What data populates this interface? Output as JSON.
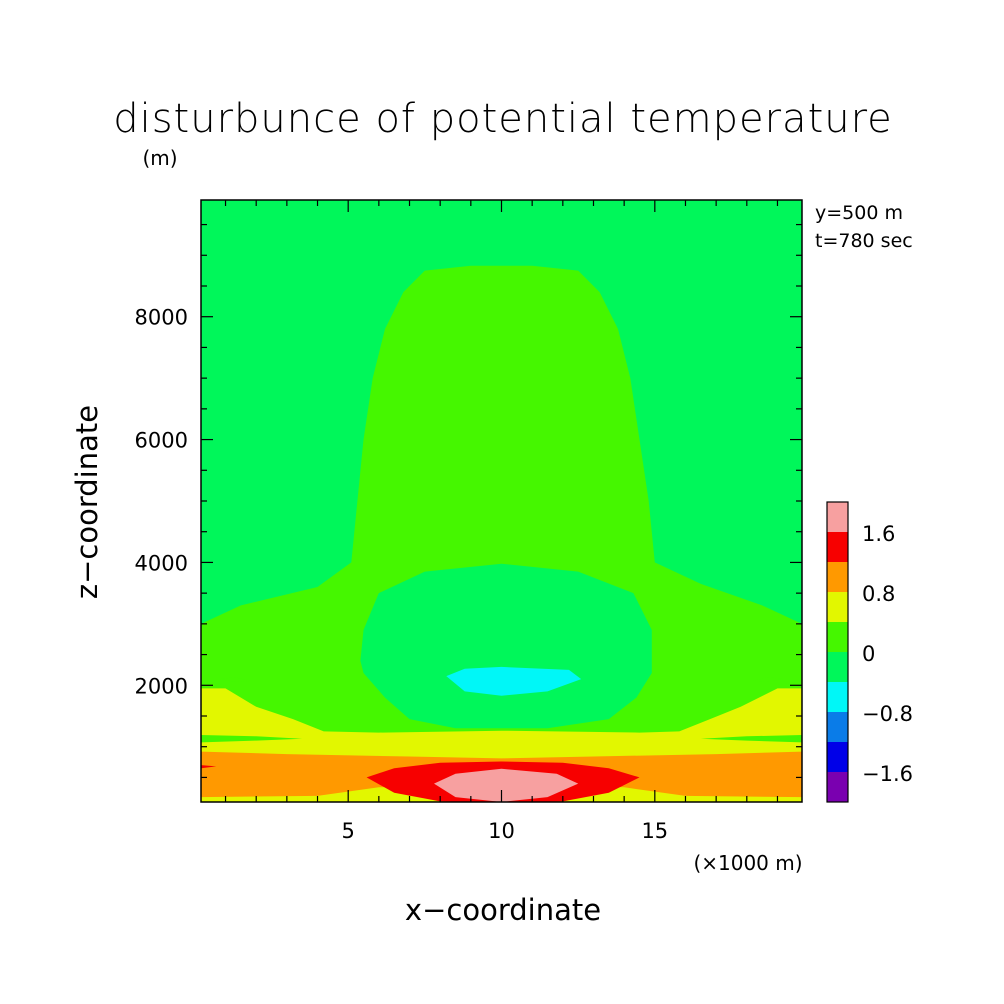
{
  "chart_data": {
    "type": "heatmap",
    "title": "disturbunce of potential temperature",
    "y_unit": "(m)",
    "xlabel": "x−coordinate",
    "ylabel": "z−coordinate",
    "x_unit": "(×1000 m)",
    "annotations": [
      "y=500 m",
      "t=780 sec"
    ],
    "xlim": [
      0.2,
      19.8
    ],
    "ylim": [
      100,
      9900
    ],
    "x_ticks": [
      {
        "value": 5,
        "label": "5"
      },
      {
        "value": 10,
        "label": "10"
      },
      {
        "value": 15,
        "label": "15"
      }
    ],
    "y_ticks": [
      {
        "value": 2000,
        "label": "2000"
      },
      {
        "value": 4000,
        "label": "4000"
      },
      {
        "value": 6000,
        "label": "6000"
      },
      {
        "value": 8000,
        "label": "8000"
      }
    ],
    "colorbar": {
      "levels": [
        {
          "range": [
            -2.0,
            -1.6
          ],
          "color": "#7a00b0",
          "label": "−1.6"
        },
        {
          "range": [
            -1.6,
            -1.2
          ],
          "color": "#0000e8",
          "label": ""
        },
        {
          "range": [
            -1.2,
            -0.8
          ],
          "color": "#0a7ce8",
          "label": "−0.8"
        },
        {
          "range": [
            -0.8,
            -0.4
          ],
          "color": "#00f7f7",
          "label": ""
        },
        {
          "range": [
            -0.4,
            0.0
          ],
          "color": "#00f75a",
          "label": "0"
        },
        {
          "range": [
            0.0,
            0.4
          ],
          "color": "#45f700",
          "label": ""
        },
        {
          "range": [
            0.4,
            0.8
          ],
          "color": "#e2f700",
          "label": "0.8"
        },
        {
          "range": [
            0.8,
            1.2
          ],
          "color": "#ff9900",
          "label": ""
        },
        {
          "range": [
            1.2,
            1.6
          ],
          "color": "#f70000",
          "label": "1.6"
        },
        {
          "range": [
            1.6,
            2.0
          ],
          "color": "#f7a0a0",
          "label": ""
        }
      ]
    },
    "regions": [
      {
        "color": "#00f75a",
        "points": [
          [
            0.2,
            100
          ],
          [
            19.8,
            100
          ],
          [
            19.8,
            9900
          ],
          [
            0.2,
            9900
          ]
        ]
      },
      {
        "color": "#45f700",
        "points": [
          [
            0.2,
            100
          ],
          [
            19.8,
            100
          ],
          [
            19.8,
            3000
          ],
          [
            18.5,
            3300
          ],
          [
            16.5,
            3650
          ],
          [
            15,
            4000
          ],
          [
            14.8,
            5000
          ],
          [
            14.5,
            6000
          ],
          [
            14.2,
            7000
          ],
          [
            13.8,
            7800
          ],
          [
            13.2,
            8400
          ],
          [
            12.5,
            8750
          ],
          [
            11,
            8830
          ],
          [
            9,
            8830
          ],
          [
            7.5,
            8750
          ],
          [
            6.8,
            8400
          ],
          [
            6.2,
            7800
          ],
          [
            5.8,
            7000
          ],
          [
            5.5,
            6000
          ],
          [
            5.3,
            5000
          ],
          [
            5.1,
            4000
          ],
          [
            4,
            3600
          ],
          [
            1.5,
            3300
          ],
          [
            0.2,
            3000
          ]
        ]
      },
      {
        "color": "#00f75a",
        "points": [
          [
            6.2,
            1800
          ],
          [
            7,
            1450
          ],
          [
            8.5,
            1300
          ],
          [
            11.5,
            1300
          ],
          [
            13.5,
            1450
          ],
          [
            14.4,
            1800
          ],
          [
            14.9,
            2200
          ],
          [
            14.9,
            2400
          ],
          [
            14.9,
            2900
          ],
          [
            14.3,
            3500
          ],
          [
            12.5,
            3850
          ],
          [
            10,
            3980
          ],
          [
            7.5,
            3850
          ],
          [
            6,
            3500
          ],
          [
            5.5,
            2900
          ],
          [
            5.4,
            2400
          ],
          [
            5.5,
            2200
          ]
        ]
      },
      {
        "color": "#00f7f7",
        "points": [
          [
            8.2,
            2150
          ],
          [
            8.8,
            1900
          ],
          [
            10,
            1830
          ],
          [
            11.5,
            1900
          ],
          [
            12.6,
            2100
          ],
          [
            12.2,
            2250
          ],
          [
            10,
            2300
          ],
          [
            8.8,
            2270
          ]
        ]
      },
      {
        "color": "#e2f700",
        "points": [
          [
            0.2,
            100
          ],
          [
            19.8,
            100
          ],
          [
            19.8,
            1950
          ],
          [
            19,
            1950
          ],
          [
            17.8,
            1650
          ],
          [
            16.8,
            1450
          ],
          [
            15.8,
            1250
          ],
          [
            14.5,
            1230
          ],
          [
            10,
            1260
          ],
          [
            6,
            1230
          ],
          [
            4.2,
            1250
          ],
          [
            3.2,
            1450
          ],
          [
            2,
            1650
          ],
          [
            1,
            1950
          ],
          [
            0.2,
            1950
          ]
        ]
      },
      {
        "color": "#45f700",
        "points": [
          [
            0.2,
            1070
          ],
          [
            2,
            1100
          ],
          [
            3.5,
            1130
          ],
          [
            2,
            1170
          ],
          [
            0.2,
            1190
          ]
        ]
      },
      {
        "color": "#45f700",
        "points": [
          [
            19.8,
            1070
          ],
          [
            18,
            1100
          ],
          [
            16.5,
            1130
          ],
          [
            18,
            1170
          ],
          [
            19.8,
            1190
          ]
        ]
      },
      {
        "color": "#45f700",
        "points": [
          [
            0.8,
            2100
          ],
          [
            1.3,
            2060
          ],
          [
            1.8,
            2070
          ],
          [
            1.3,
            2130
          ]
        ]
      },
      {
        "color": "#45f700",
        "points": [
          [
            19.2,
            2100
          ],
          [
            18.7,
            2060
          ],
          [
            18.2,
            2070
          ],
          [
            18.7,
            2130
          ]
        ]
      },
      {
        "color": "#ff9900",
        "points": [
          [
            0.2,
            180
          ],
          [
            4,
            200
          ],
          [
            6,
            340
          ],
          [
            10,
            400
          ],
          [
            14,
            340
          ],
          [
            16,
            200
          ],
          [
            19.8,
            180
          ],
          [
            19.8,
            920
          ],
          [
            17,
            880
          ],
          [
            13,
            840
          ],
          [
            10,
            810
          ],
          [
            7,
            840
          ],
          [
            3,
            880
          ],
          [
            0.2,
            920
          ]
        ]
      },
      {
        "color": "#f70000",
        "points": [
          [
            0.2,
            700
          ],
          [
            0.7,
            680
          ],
          [
            0.2,
            650
          ]
        ]
      },
      {
        "color": "#f70000",
        "points": [
          [
            5.6,
            500
          ],
          [
            6.5,
            250
          ],
          [
            8,
            110
          ],
          [
            10,
            100
          ],
          [
            12,
            110
          ],
          [
            13.5,
            250
          ],
          [
            14.5,
            500
          ],
          [
            13.5,
            650
          ],
          [
            12,
            740
          ],
          [
            10,
            760
          ],
          [
            8,
            740
          ],
          [
            6.5,
            650
          ]
        ]
      },
      {
        "color": "#f7a0a0",
        "points": [
          [
            7.8,
            400
          ],
          [
            8.5,
            180
          ],
          [
            10,
            100
          ],
          [
            11.5,
            180
          ],
          [
            12.5,
            400
          ],
          [
            11.8,
            560
          ],
          [
            10,
            640
          ],
          [
            8.5,
            560
          ]
        ]
      }
    ]
  }
}
